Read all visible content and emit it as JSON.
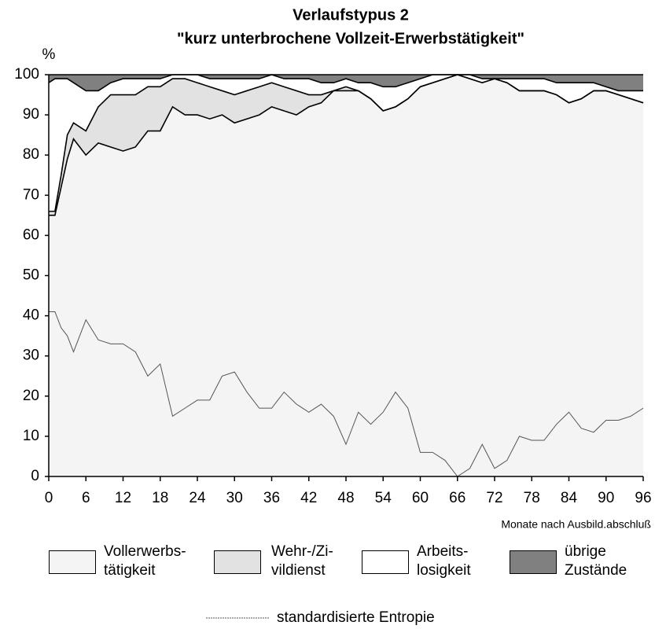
{
  "chart_data": {
    "type": "area",
    "title": "Verlaufstypus 2",
    "subtitle": "\"kurz unterbrochene Vollzeit-Erwerbstätigkeit\"",
    "y_label": "%",
    "x_label": "Monate nach Ausbild.abschluß",
    "xlim": [
      0,
      96
    ],
    "ylim": [
      0,
      100
    ],
    "xticks": [
      0,
      6,
      12,
      18,
      24,
      30,
      36,
      42,
      48,
      54,
      60,
      66,
      72,
      78,
      84,
      90,
      96
    ],
    "yticks": [
      0,
      10,
      20,
      30,
      40,
      50,
      60,
      70,
      80,
      90,
      100
    ],
    "stacked": true,
    "x": [
      0,
      1,
      2,
      3,
      4,
      6,
      8,
      10,
      12,
      14,
      16,
      18,
      20,
      22,
      24,
      26,
      28,
      30,
      32,
      34,
      36,
      38,
      40,
      42,
      44,
      46,
      48,
      50,
      52,
      54,
      56,
      58,
      60,
      62,
      64,
      66,
      68,
      70,
      72,
      74,
      76,
      78,
      80,
      82,
      84,
      86,
      88,
      90,
      92,
      94,
      96
    ],
    "series": [
      {
        "name": "Vollerwerbs-\ntätigkeit",
        "color": "#f4f4f4",
        "kind": "area",
        "values": [
          65,
          65,
          72,
          79,
          84,
          80,
          83,
          82,
          81,
          82,
          86,
          86,
          92,
          90,
          90,
          89,
          90,
          88,
          89,
          90,
          92,
          91,
          90,
          92,
          93,
          96,
          96,
          96,
          94,
          91,
          92,
          94,
          97,
          98,
          99,
          100,
          99,
          98,
          99,
          98,
          96,
          96,
          96,
          95,
          93,
          94,
          96,
          96,
          95,
          94,
          93
        ]
      },
      {
        "name": "Wehr-/Zi-\nvildienst",
        "color": "#e2e2e2",
        "kind": "area",
        "values": [
          1,
          1,
          3,
          6,
          4,
          6,
          9,
          13,
          14,
          13,
          11,
          11,
          7,
          9,
          8,
          8,
          6,
          7,
          7,
          7,
          6,
          6,
          6,
          3,
          2,
          0,
          1,
          0,
          0,
          0,
          0,
          0,
          0,
          0,
          0,
          0,
          0,
          0,
          0,
          0,
          0,
          0,
          0,
          0,
          0,
          0,
          0,
          0,
          0,
          0,
          0
        ]
      },
      {
        "name": "Arbeits-\nlosigkeit",
        "color": "#ffffff",
        "kind": "area",
        "values": [
          32,
          33,
          24,
          14,
          10,
          10,
          4,
          3,
          4,
          4,
          2,
          2,
          1,
          1,
          2,
          2,
          3,
          4,
          3,
          2,
          2,
          2,
          3,
          4,
          3,
          2,
          2,
          2,
          4,
          6,
          5,
          4,
          2,
          2,
          1,
          0,
          1,
          1,
          0,
          1,
          3,
          3,
          3,
          3,
          5,
          4,
          2,
          1,
          1,
          2,
          3
        ]
      },
      {
        "name": "übrige\nZustände",
        "color": "#808080",
        "kind": "area",
        "values": [
          2,
          1,
          1,
          1,
          2,
          4,
          4,
          2,
          1,
          1,
          1,
          1,
          0,
          0,
          0,
          1,
          1,
          1,
          1,
          1,
          0,
          1,
          1,
          1,
          2,
          2,
          1,
          2,
          2,
          3,
          3,
          2,
          1,
          0,
          0,
          0,
          0,
          1,
          1,
          1,
          1,
          1,
          1,
          2,
          2,
          2,
          2,
          3,
          4,
          4,
          4
        ]
      },
      {
        "name": "standardisierte Entropie",
        "color": "#555555",
        "kind": "line",
        "values": [
          41,
          41,
          37,
          35,
          31,
          39,
          34,
          33,
          33,
          31,
          25,
          28,
          15,
          17,
          19,
          19,
          25,
          26,
          21,
          17,
          17,
          21,
          18,
          16,
          18,
          15,
          8,
          16,
          13,
          16,
          21,
          17,
          6,
          6,
          4,
          0,
          2,
          8,
          2,
          4,
          10,
          9,
          9,
          13,
          16,
          12,
          11,
          14,
          14,
          15,
          17
        ]
      }
    ]
  }
}
